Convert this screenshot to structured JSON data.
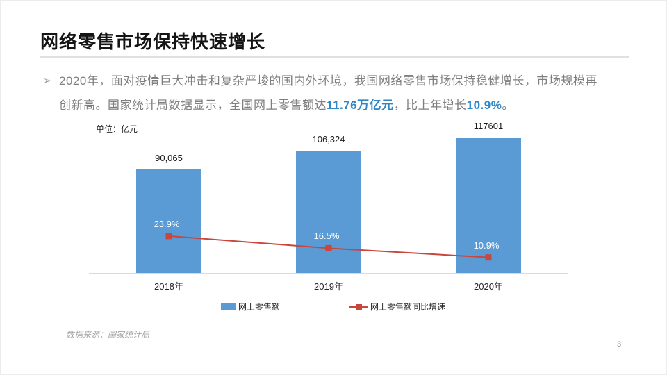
{
  "slide": {
    "title": "网络零售市场保持快速增长",
    "source_note": "数据来源：国家统计局",
    "page_number": "3"
  },
  "paragraph": {
    "bullet": "➢",
    "segments": [
      {
        "text": "2020年，面对疫情巨大冲击和复杂严峻的国内外环境，我国网络零售市场保持稳健增长，市场规模再\n创新高。国家统计局数据显示，全国网上零售额达",
        "style": "normal"
      },
      {
        "text": "11.76万亿元",
        "style": "highlight"
      },
      {
        "text": "，比上年增长",
        "style": "normal"
      },
      {
        "text": "10.9%",
        "style": "highlight"
      },
      {
        "text": "。",
        "style": "normal"
      }
    ]
  },
  "chart_data": {
    "type": "bar+line",
    "title": "",
    "unit_label": "单位：亿元",
    "categories": [
      "2018年",
      "2019年",
      "2020年"
    ],
    "series": [
      {
        "name": "网上零售额",
        "type": "bar",
        "values": [
          90065,
          106324,
          117601
        ],
        "labels": [
          "90,065",
          "106,324",
          "117601"
        ],
        "color": "#5b9bd5"
      },
      {
        "name": "网上零售额同比增速",
        "type": "line",
        "values": [
          23.9,
          16.5,
          10.9
        ],
        "labels": [
          "23.9%",
          "16.5%",
          "10.9%"
        ],
        "color": "#c9463d"
      }
    ],
    "ylim_bar": [
      0,
      130000
    ],
    "ylim_line_pct": [
      0,
      90
    ],
    "grid": false,
    "legend_position": "bottom"
  },
  "colors": {
    "accent_blue": "#2e86c5",
    "bar_blue": "#5b9bd5",
    "line_red": "#c9463d",
    "body_gray": "#7f7f7f"
  }
}
